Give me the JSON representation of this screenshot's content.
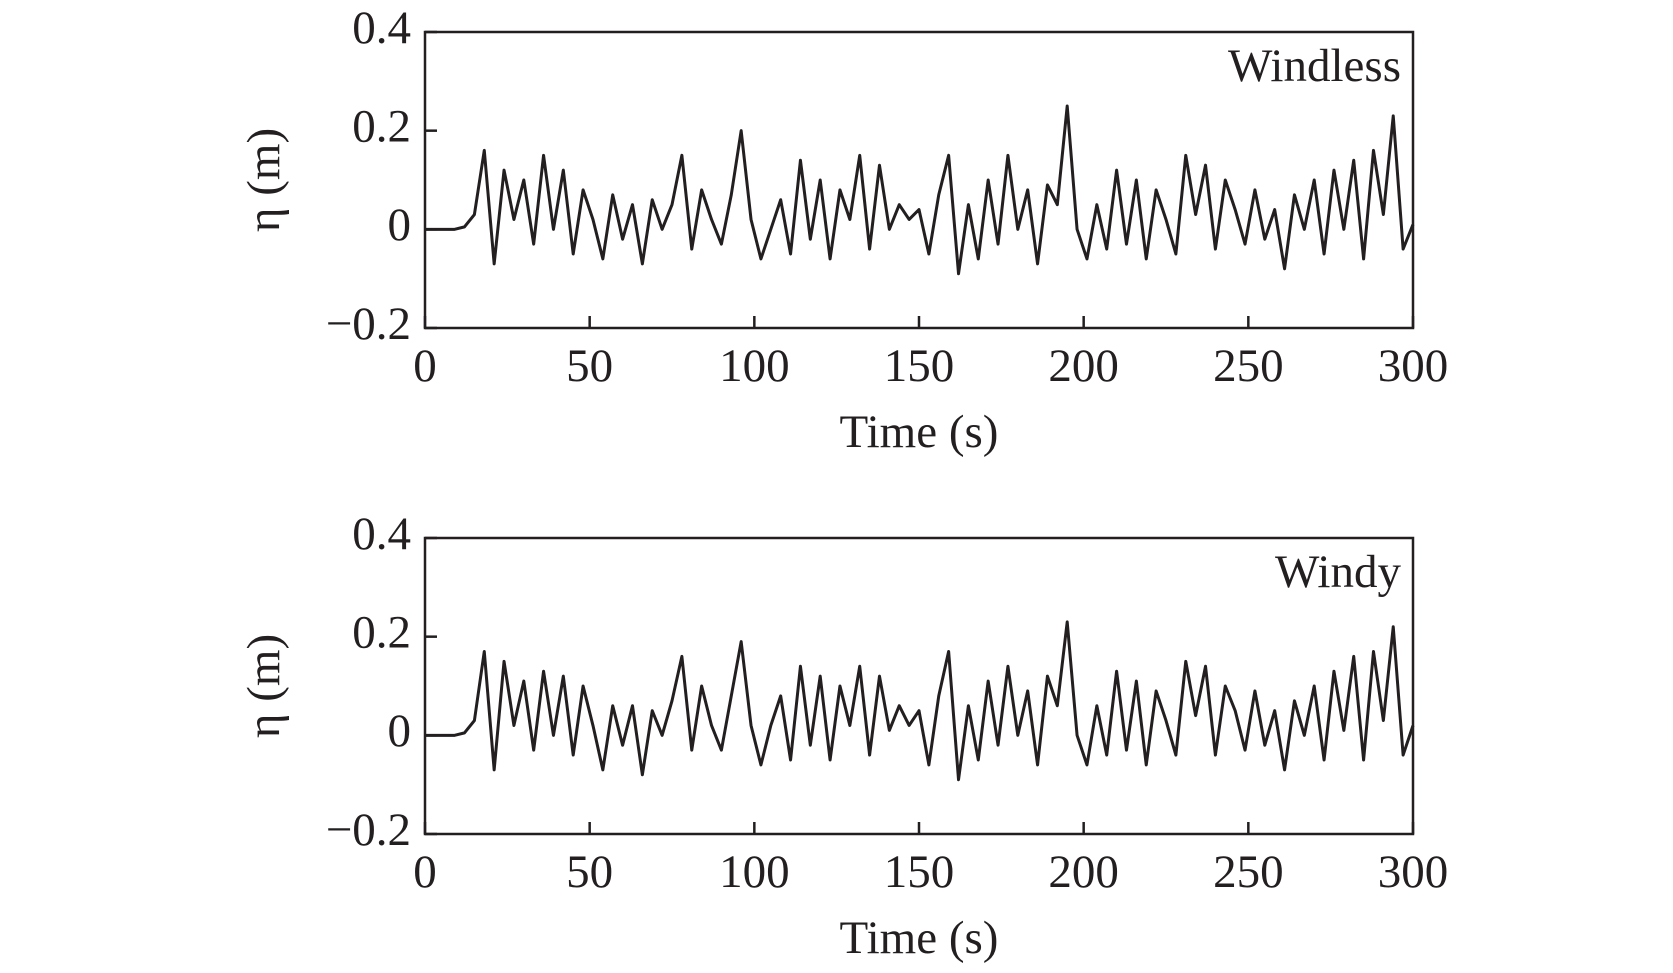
{
  "chart_data": [
    {
      "type": "line",
      "annotation": "Windless",
      "xlabel": "Time (s)",
      "ylabel": "η (m)",
      "x": [
        0,
        3,
        6,
        9,
        12,
        15,
        18,
        21,
        24,
        27,
        30,
        33,
        36,
        39,
        42,
        45,
        48,
        51,
        54,
        57,
        60,
        63,
        66,
        69,
        72,
        75,
        78,
        81,
        84,
        87,
        90,
        93,
        96,
        99,
        102,
        105,
        108,
        111,
        114,
        117,
        120,
        123,
        126,
        129,
        132,
        135,
        138,
        141,
        144,
        147,
        150,
        153,
        156,
        159,
        162,
        165,
        168,
        171,
        174,
        177,
        180,
        183,
        186,
        189,
        192,
        195,
        198,
        201,
        204,
        207,
        210,
        213,
        216,
        219,
        222,
        225,
        228,
        231,
        234,
        237,
        240,
        243,
        246,
        249,
        252,
        255,
        258,
        261,
        264,
        267,
        270,
        273,
        276,
        279,
        282,
        285,
        288,
        291,
        294,
        297,
        300
      ],
      "series": [
        {
          "name": "Windless",
          "color": "#231f20",
          "values": [
            0,
            0,
            0,
            0,
            0.005,
            0.03,
            0.16,
            -0.07,
            0.12,
            0.02,
            0.1,
            -0.03,
            0.15,
            0,
            0.12,
            -0.05,
            0.08,
            0.02,
            -0.06,
            0.07,
            -0.02,
            0.05,
            -0.07,
            0.06,
            0,
            0.05,
            0.15,
            -0.04,
            0.08,
            0.02,
            -0.03,
            0.07,
            0.2,
            0.02,
            -0.06,
            0,
            0.06,
            -0.05,
            0.14,
            -0.02,
            0.1,
            -0.06,
            0.08,
            0.02,
            0.15,
            -0.04,
            0.13,
            0,
            0.05,
            0.02,
            0.04,
            -0.05,
            0.07,
            0.15,
            -0.09,
            0.05,
            -0.06,
            0.1,
            -0.03,
            0.15,
            0,
            0.08,
            -0.07,
            0.09,
            0.05,
            0.25,
            0,
            -0.06,
            0.05,
            -0.04,
            0.12,
            -0.03,
            0.1,
            -0.06,
            0.08,
            0.02,
            -0.05,
            0.15,
            0.03,
            0.13,
            -0.04,
            0.1,
            0.04,
            -0.03,
            0.08,
            -0.02,
            0.04,
            -0.08,
            0.07,
            0,
            0.1,
            -0.05,
            0.12,
            0,
            0.14,
            -0.06,
            0.16,
            0.03,
            0.23,
            -0.04,
            0.01
          ]
        }
      ],
      "xlim": [
        0,
        300
      ],
      "ylim": [
        -0.2,
        0.4
      ],
      "xticks": [
        0,
        50,
        100,
        150,
        200,
        250,
        300
      ],
      "yticks": [
        {
          "value": -0.2,
          "label": "−0.2"
        },
        0,
        0.2,
        0.4
      ]
    },
    {
      "type": "line",
      "annotation": "Windy",
      "xlabel": "Time (s)",
      "ylabel": "η (m)",
      "x": [
        0,
        3,
        6,
        9,
        12,
        15,
        18,
        21,
        24,
        27,
        30,
        33,
        36,
        39,
        42,
        45,
        48,
        51,
        54,
        57,
        60,
        63,
        66,
        69,
        72,
        75,
        78,
        81,
        84,
        87,
        90,
        93,
        96,
        99,
        102,
        105,
        108,
        111,
        114,
        117,
        120,
        123,
        126,
        129,
        132,
        135,
        138,
        141,
        144,
        147,
        150,
        153,
        156,
        159,
        162,
        165,
        168,
        171,
        174,
        177,
        180,
        183,
        186,
        189,
        192,
        195,
        198,
        201,
        204,
        207,
        210,
        213,
        216,
        219,
        222,
        225,
        228,
        231,
        234,
        237,
        240,
        243,
        246,
        249,
        252,
        255,
        258,
        261,
        264,
        267,
        270,
        273,
        276,
        279,
        282,
        285,
        288,
        291,
        294,
        297,
        300
      ],
      "series": [
        {
          "name": "Windy",
          "color": "#231f20",
          "values": [
            0,
            0,
            0,
            0,
            0.005,
            0.03,
            0.17,
            -0.07,
            0.15,
            0.02,
            0.11,
            -0.03,
            0.13,
            0,
            0.12,
            -0.04,
            0.1,
            0.02,
            -0.07,
            0.06,
            -0.02,
            0.06,
            -0.08,
            0.05,
            0,
            0.07,
            0.16,
            -0.03,
            0.1,
            0.02,
            -0.03,
            0.08,
            0.19,
            0.02,
            -0.06,
            0.02,
            0.08,
            -0.05,
            0.14,
            -0.02,
            0.12,
            -0.05,
            0.1,
            0.02,
            0.14,
            -0.04,
            0.12,
            0.01,
            0.06,
            0.02,
            0.05,
            -0.06,
            0.08,
            0.17,
            -0.09,
            0.06,
            -0.05,
            0.11,
            -0.02,
            0.14,
            0,
            0.09,
            -0.06,
            0.12,
            0.06,
            0.23,
            0,
            -0.06,
            0.06,
            -0.04,
            0.13,
            -0.03,
            0.11,
            -0.06,
            0.09,
            0.03,
            -0.04,
            0.15,
            0.04,
            0.14,
            -0.04,
            0.1,
            0.05,
            -0.03,
            0.09,
            -0.02,
            0.05,
            -0.07,
            0.07,
            0,
            0.1,
            -0.05,
            0.13,
            0.01,
            0.16,
            -0.05,
            0.17,
            0.03,
            0.22,
            -0.04,
            0.02
          ]
        }
      ],
      "xlim": [
        0,
        300
      ],
      "ylim": [
        -0.2,
        0.4
      ],
      "xticks": [
        0,
        50,
        100,
        150,
        200,
        250,
        300
      ],
      "yticks": [
        {
          "value": -0.2,
          "label": "−0.2"
        },
        0,
        0.2,
        0.4
      ]
    }
  ]
}
